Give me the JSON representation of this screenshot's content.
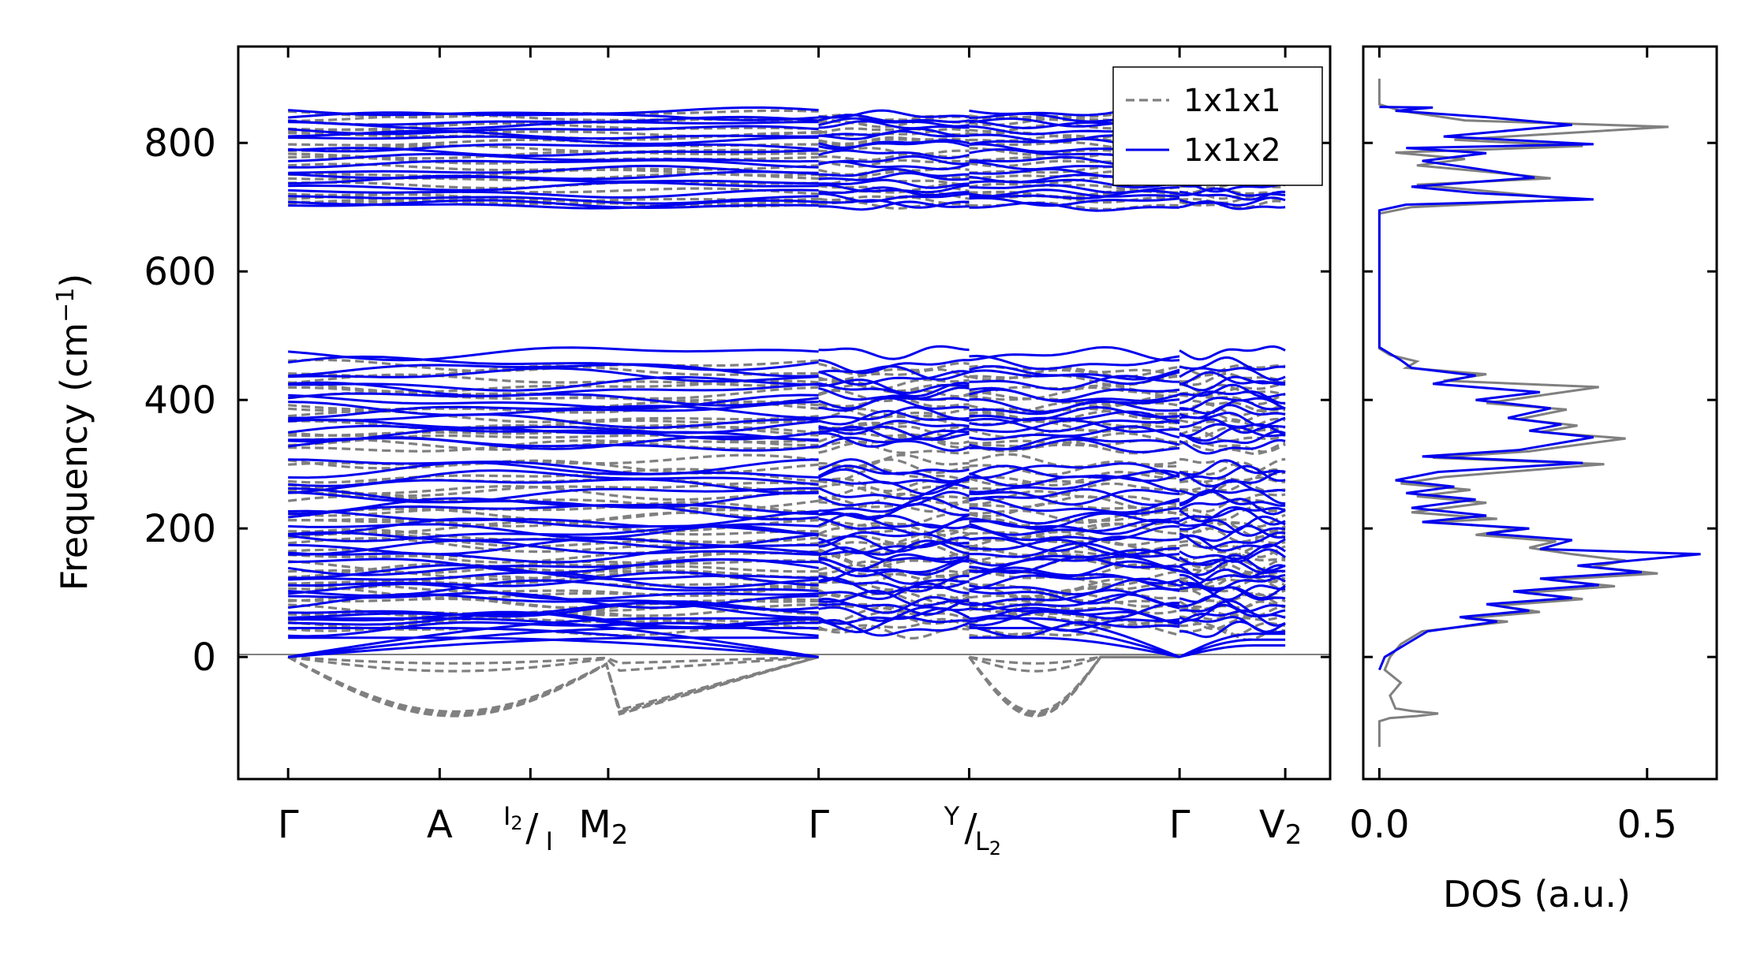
{
  "chart_data": [
    {
      "type": "line",
      "subtype": "phonon-band-structure",
      "ylabel": "Frequency (cm",
      "ylabel_sup": "−1",
      "ylabel_end": ")",
      "ylim": [
        -190,
        950
      ],
      "yticks": [
        {
          "value": 0,
          "label": "0"
        },
        {
          "value": 200,
          "label": "200"
        },
        {
          "value": 400,
          "label": "400"
        },
        {
          "value": 600,
          "label": "600"
        },
        {
          "value": 800,
          "label": "800"
        }
      ],
      "xlim": [
        -0.05,
        1.045
      ],
      "kpoints": [
        {
          "x": 0.0,
          "label": "Γ"
        },
        {
          "x": 0.152,
          "label": "A"
        },
        {
          "x": 0.243,
          "label": "I₂/I",
          "top": "I",
          "top_sub": "2",
          "slash": "/",
          "bottom": "I"
        },
        {
          "x": 0.321,
          "label": "M₂",
          "main": "M",
          "sub": "2"
        },
        {
          "x": 0.532,
          "label": "Γ"
        },
        {
          "x": 0.683,
          "label": "Y/L₂",
          "top": "Y",
          "slash": "/",
          "bottom": "L",
          "bottom_sub": "2"
        },
        {
          "x": 0.894,
          "label": "Γ"
        },
        {
          "x": 1.0,
          "label": "V₂",
          "main": "V",
          "sub": "2"
        }
      ],
      "segment_breaks": [
        0.532,
        0.683,
        0.894
      ],
      "legend": {
        "position": "upper right",
        "entries": [
          {
            "name": "1x1x1",
            "style": "dashed",
            "color": "#808080"
          },
          {
            "name": "1x1x2",
            "style": "solid",
            "color": "#0000ee"
          }
        ]
      },
      "series": [
        {
          "name": "1x1x1",
          "color": "#808080",
          "flat_modes_cm1": [
            704,
            712,
            716,
            722,
            733,
            742,
            752,
            760,
            770,
            781,
            790,
            800,
            808,
            815,
            822,
            830,
            838,
            843,
            325,
            332,
            342,
            350,
            358,
            366,
            375,
            384,
            392,
            402,
            412,
            420,
            430,
            440,
            450,
            212,
            222,
            232,
            242,
            252,
            262,
            272,
            282,
            294,
            300,
            40,
            50,
            58,
            66,
            74,
            82,
            90,
            98,
            106,
            114,
            122,
            130,
            138,
            146,
            154,
            162,
            170,
            178,
            186,
            196,
            204
          ],
          "acoustic_min_cm1": [
            -92,
            -90,
            -88,
            -85,
            -22,
            -10
          ]
        },
        {
          "name": "1x1x2",
          "color": "#0000ee",
          "flat_modes_cm1": [
            702,
            708,
            715,
            720,
            730,
            738,
            748,
            756,
            765,
            775,
            786,
            795,
            803,
            811,
            818,
            826,
            834,
            840,
            846,
            330,
            338,
            346,
            354,
            362,
            370,
            380,
            388,
            396,
            405,
            415,
            425,
            435,
            445,
            455,
            472,
            205,
            215,
            225,
            235,
            245,
            255,
            265,
            275,
            285,
            296,
            44,
            52,
            60,
            68,
            76,
            84,
            92,
            100,
            108,
            116,
            124,
            132,
            140,
            148,
            156,
            164,
            172,
            180,
            188,
            198
          ],
          "acoustic_max_cm1": [
            60,
            45,
            30
          ]
        }
      ]
    },
    {
      "type": "line",
      "subtype": "density-of-states",
      "xlabel": "DOS (a.u.)",
      "xlim": [
        -0.03,
        0.63
      ],
      "xticks": [
        {
          "value": 0.0,
          "label": "0.0"
        },
        {
          "value": 0.5,
          "label": "0.5"
        }
      ],
      "ylim": [
        -190,
        950
      ],
      "series": [
        {
          "name": "1x1x1",
          "color": "#808080",
          "points": [
            [
              0.0,
              -140
            ],
            [
              0.0,
              -100
            ],
            [
              0.02,
              -95
            ],
            [
              0.07,
              -92
            ],
            [
              0.11,
              -88
            ],
            [
              0.06,
              -84
            ],
            [
              0.03,
              -80
            ],
            [
              0.02,
              -60
            ],
            [
              0.04,
              -40
            ],
            [
              0.01,
              -20
            ],
            [
              0.02,
              0
            ],
            [
              0.04,
              20
            ],
            [
              0.08,
              40
            ],
            [
              0.24,
              55
            ],
            [
              0.16,
              60
            ],
            [
              0.3,
              70
            ],
            [
              0.22,
              80
            ],
            [
              0.38,
              90
            ],
            [
              0.27,
              100
            ],
            [
              0.44,
              110
            ],
            [
              0.32,
              120
            ],
            [
              0.52,
              130
            ],
            [
              0.4,
              140
            ],
            [
              0.46,
              150
            ],
            [
              0.36,
              160
            ],
            [
              0.28,
              170
            ],
            [
              0.33,
              180
            ],
            [
              0.18,
              190
            ],
            [
              0.26,
              200
            ],
            [
              0.1,
              210
            ],
            [
              0.22,
              215
            ],
            [
              0.06,
              225
            ],
            [
              0.2,
              240
            ],
            [
              0.07,
              250
            ],
            [
              0.17,
              260
            ],
            [
              0.04,
              270
            ],
            [
              0.12,
              280
            ],
            [
              0.42,
              300
            ],
            [
              0.1,
              310
            ],
            [
              0.28,
              320
            ],
            [
              0.46,
              340
            ],
            [
              0.3,
              350
            ],
            [
              0.37,
              360
            ],
            [
              0.26,
              370
            ],
            [
              0.35,
              385
            ],
            [
              0.2,
              395
            ],
            [
              0.41,
              420
            ],
            [
              0.12,
              430
            ],
            [
              0.2,
              440
            ],
            [
              0.05,
              450
            ],
            [
              0.07,
              460
            ],
            [
              0.02,
              470
            ],
            [
              0.0,
              480
            ],
            [
              0.0,
              690
            ],
            [
              0.06,
              700
            ],
            [
              0.36,
              712
            ],
            [
              0.2,
              725
            ],
            [
              0.07,
              735
            ],
            [
              0.32,
              745
            ],
            [
              0.2,
              755
            ],
            [
              0.07,
              765
            ],
            [
              0.16,
              775
            ],
            [
              0.03,
              785
            ],
            [
              0.38,
              795
            ],
            [
              0.14,
              805
            ],
            [
              0.54,
              825
            ],
            [
              0.16,
              835
            ],
            [
              0.04,
              850
            ],
            [
              0.0,
              860
            ],
            [
              0.0,
              900
            ]
          ]
        },
        {
          "name": "1x1x2",
          "color": "#0000ee",
          "points": [
            [
              0.0,
              -20
            ],
            [
              0.01,
              0
            ],
            [
              0.05,
              20
            ],
            [
              0.09,
              40
            ],
            [
              0.22,
              55
            ],
            [
              0.15,
              62
            ],
            [
              0.28,
              72
            ],
            [
              0.2,
              82
            ],
            [
              0.36,
              92
            ],
            [
              0.25,
              102
            ],
            [
              0.41,
              112
            ],
            [
              0.3,
              122
            ],
            [
              0.49,
              132
            ],
            [
              0.37,
              142
            ],
            [
              0.6,
              160
            ],
            [
              0.3,
              168
            ],
            [
              0.36,
              182
            ],
            [
              0.2,
              192
            ],
            [
              0.28,
              200
            ],
            [
              0.08,
              210
            ],
            [
              0.2,
              220
            ],
            [
              0.06,
              232
            ],
            [
              0.18,
              245
            ],
            [
              0.05,
              255
            ],
            [
              0.14,
              265
            ],
            [
              0.03,
              275
            ],
            [
              0.11,
              288
            ],
            [
              0.38,
              302
            ],
            [
              0.08,
              312
            ],
            [
              0.26,
              322
            ],
            [
              0.4,
              342
            ],
            [
              0.28,
              352
            ],
            [
              0.34,
              362
            ],
            [
              0.24,
              372
            ],
            [
              0.32,
              387
            ],
            [
              0.18,
              400
            ],
            [
              0.3,
              412
            ],
            [
              0.1,
              425
            ],
            [
              0.18,
              438
            ],
            [
              0.06,
              450
            ],
            [
              0.04,
              462
            ],
            [
              0.02,
              472
            ],
            [
              0.0,
              482
            ],
            [
              0.0,
              695
            ],
            [
              0.05,
              704
            ],
            [
              0.4,
              712
            ],
            [
              0.18,
              722
            ],
            [
              0.06,
              732
            ],
            [
              0.29,
              746
            ],
            [
              0.18,
              760
            ],
            [
              0.08,
              772
            ],
            [
              0.2,
              784
            ],
            [
              0.05,
              792
            ],
            [
              0.4,
              798
            ],
            [
              0.12,
              810
            ],
            [
              0.36,
              828
            ],
            [
              0.2,
              840
            ],
            [
              0.03,
              850
            ],
            [
              0.1,
              855
            ],
            [
              0.0,
              856
            ]
          ]
        }
      ]
    }
  ]
}
